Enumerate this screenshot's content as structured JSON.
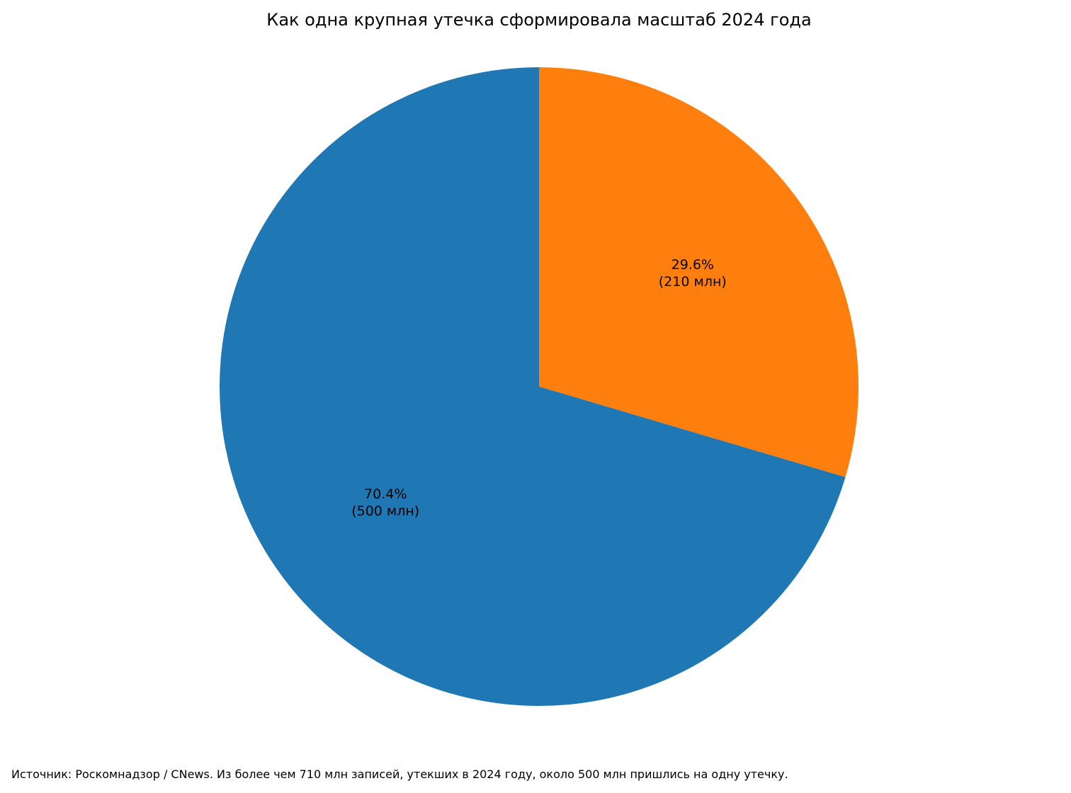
{
  "title": "Как одна крупная утечка сформировала масштаб 2024 года",
  "source_note": "Источник: Роскомнадзор / CNews. Из более чем 710 млн записей, утекших в 2024 году, около 500 млн пришлись на одну утечку.",
  "chart_data": {
    "type": "pie",
    "title": "Как одна крупная утечка сформировала масштаб 2024 года",
    "start_angle_deg": 90,
    "direction": "clockwise",
    "legend": "none",
    "slices": [
      {
        "value": 210,
        "unit": "млн",
        "percent_label": "29.6%",
        "value_label": "(210 млн)",
        "color": "#ff7f0e"
      },
      {
        "value": 500,
        "unit": "млн",
        "percent_label": "70.4%",
        "value_label": "(500 млн)",
        "color": "#1f77b4"
      }
    ]
  }
}
